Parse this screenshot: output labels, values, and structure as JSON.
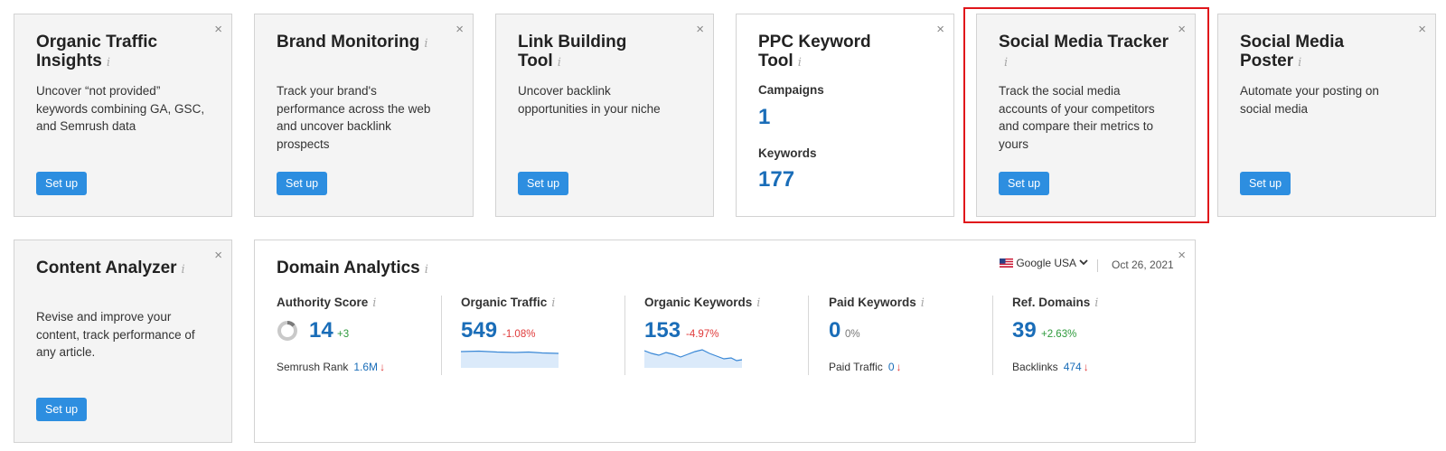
{
  "cards": {
    "organic": {
      "title": "Organic Traffic",
      "title2": "Insights",
      "desc": [
        "Uncover “not provided”",
        "keywords combining GA, GSC,",
        "and Semrush data"
      ],
      "button": "Set up"
    },
    "brand": {
      "title": "Brand Monitoring",
      "desc": [
        "Track your brand's",
        "performance across the web",
        "and uncover backlink",
        "prospects"
      ],
      "button": "Set up"
    },
    "link": {
      "title": "Link Building",
      "title2": "Tool",
      "desc": [
        "Uncover backlink",
        "opportunities in your niche"
      ],
      "button": "Set up"
    },
    "ppc": {
      "title": "PPC Keyword",
      "title2": "Tool",
      "campaigns_label": "Campaigns",
      "campaigns_value": "1",
      "keywords_label": "Keywords",
      "keywords_value": "177"
    },
    "social_tracker": {
      "title": "Social Media Tracker",
      "desc": [
        "Track the social media",
        "accounts of your competitors",
        "and compare their metrics to",
        "yours"
      ],
      "button": "Set up"
    },
    "social_poster": {
      "title": "Social Media",
      "title2": "Poster",
      "desc": [
        "Automate your posting on",
        "social media"
      ],
      "button": "Set up"
    },
    "content": {
      "title": "Content Analyzer",
      "desc": [
        "Revise and improve your",
        "content, track performance of",
        "any article."
      ],
      "button": "Set up"
    }
  },
  "close_glyph": "×",
  "info_glyph": "i",
  "domain": {
    "title": "Domain Analytics",
    "database": "Google USA",
    "date": "Oct 26, 2021",
    "metrics": [
      {
        "label": "Authority Score",
        "value": "14",
        "change": "+3",
        "sub_label": "Semrush Rank",
        "sub_value": "1.6M",
        "sub_arrow": "↓",
        "ring_level": 0.14
      },
      {
        "label": "Organic Traffic",
        "value": "549",
        "change": "-1.08%"
      },
      {
        "label": "Organic Keywords",
        "value": "153",
        "change": "-4.97%"
      },
      {
        "label": "Paid Keywords",
        "value": "0",
        "change": "0%",
        "sub_label": "Paid Traffic",
        "sub_value": "0",
        "sub_arrow": "↓"
      },
      {
        "label": "Ref. Domains",
        "value": "39",
        "change": "+2.63%",
        "sub_label": "Backlinks",
        "sub_value": "474",
        "sub_arrow": "↓"
      }
    ]
  },
  "colors": {
    "accent": "#2d8ee0",
    "value_blue": "#1a6db8",
    "positive": "#2e9a3c",
    "negative": "#e03a3a",
    "highlight": "#e0161b"
  }
}
